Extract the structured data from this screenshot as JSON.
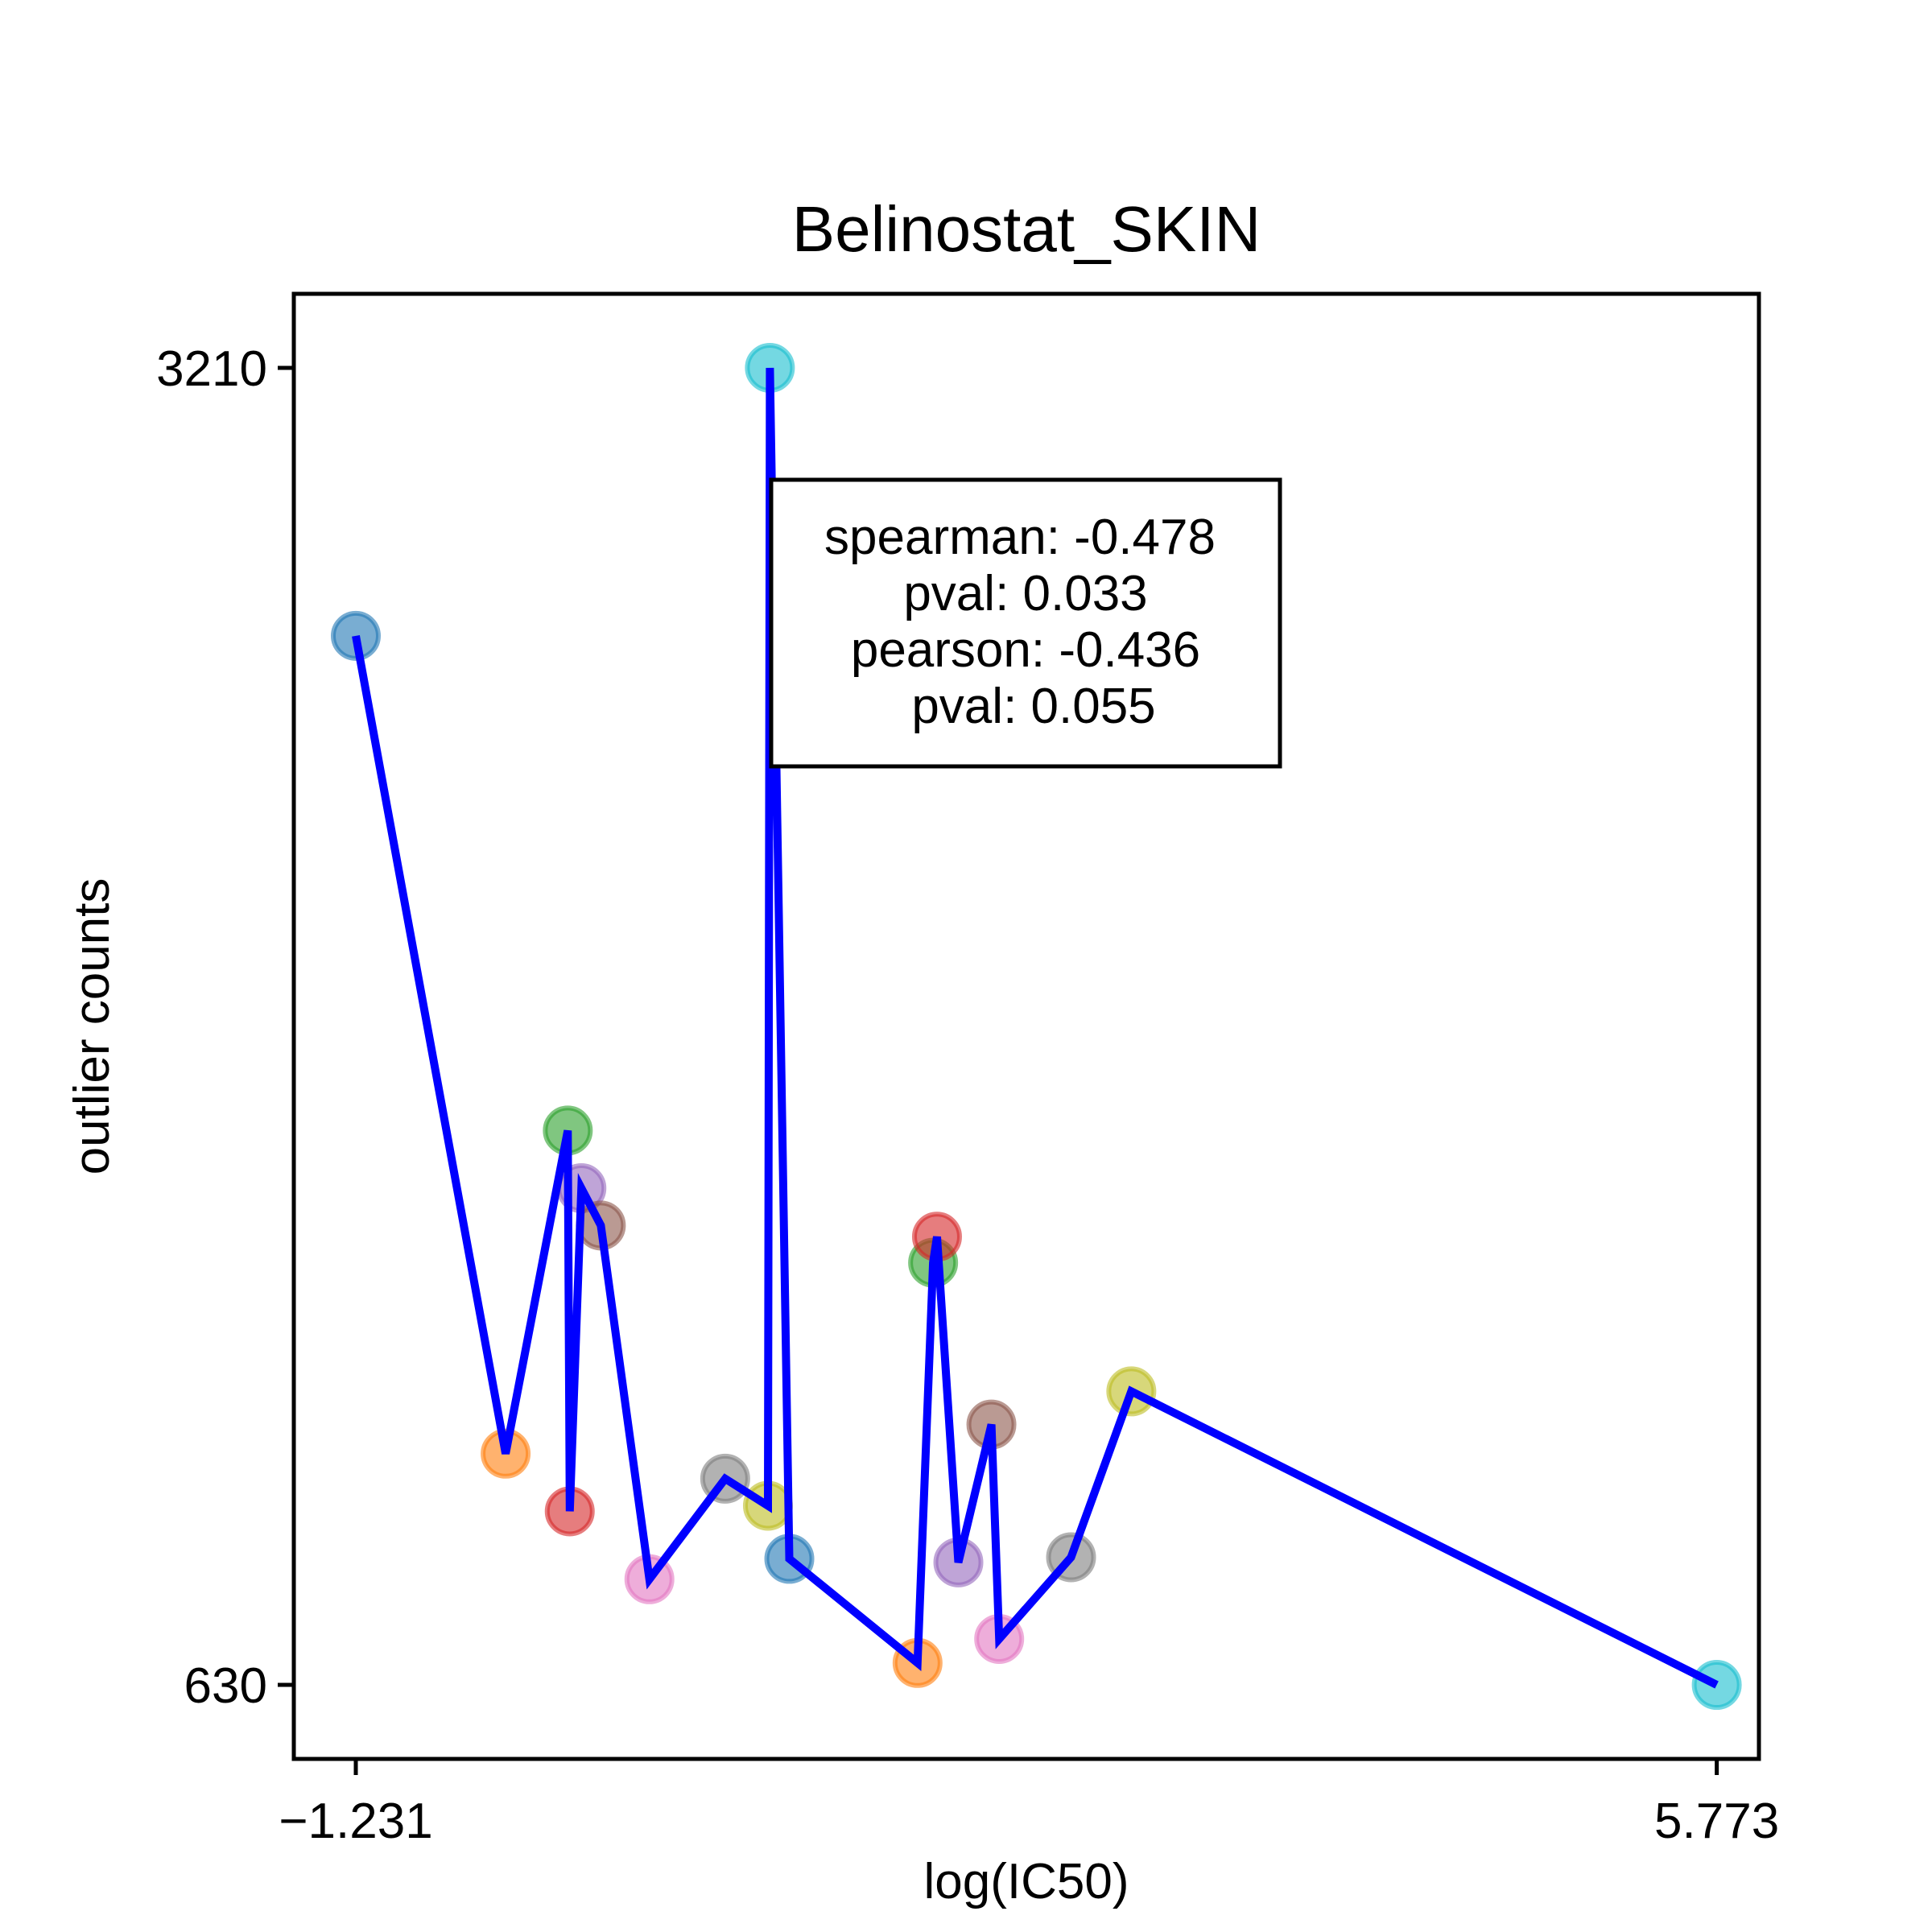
{
  "chart_data": {
    "type": "scatter",
    "title": "Belinostat_SKIN",
    "xlabel": "log(IC50)",
    "ylabel": "outlier counts",
    "xlim": [
      -1.55,
      5.99
    ],
    "ylim": [
      485,
      3355
    ],
    "x_ticks": [
      -1.231,
      5.773
    ],
    "x_tick_labels": [
      "−1.231",
      "5.773"
    ],
    "y_ticks": [
      630,
      3210
    ],
    "y_tick_labels": [
      "630",
      "3210"
    ],
    "grid": false,
    "line_color": "#0000ff",
    "points": [
      {
        "x": -1.231,
        "y": 2685,
        "color": "#1f77b4"
      },
      {
        "x": -0.46,
        "y": 1083,
        "color": "#ff7f0e"
      },
      {
        "x": -0.14,
        "y": 1716,
        "color": "#2ca02c"
      },
      {
        "x": -0.13,
        "y": 970,
        "color": "#d62728"
      },
      {
        "x": -0.07,
        "y": 1603,
        "color": "#9467bd"
      },
      {
        "x": 0.03,
        "y": 1530,
        "color": "#8c564b"
      },
      {
        "x": 0.28,
        "y": 837,
        "color": "#e377c2"
      },
      {
        "x": 0.67,
        "y": 1034,
        "color": "#7f7f7f"
      },
      {
        "x": 0.89,
        "y": 981,
        "color": "#bcbd22"
      },
      {
        "x": 0.9,
        "y": 3210,
        "color": "#17becf"
      },
      {
        "x": 1.0,
        "y": 877,
        "color": "#1f77b4"
      },
      {
        "x": 1.66,
        "y": 673,
        "color": "#ff7f0e"
      },
      {
        "x": 1.74,
        "y": 1457,
        "color": "#2ca02c"
      },
      {
        "x": 1.76,
        "y": 1508,
        "color": "#d62728"
      },
      {
        "x": 1.87,
        "y": 870,
        "color": "#9467bd"
      },
      {
        "x": 2.04,
        "y": 1140,
        "color": "#8c564b"
      },
      {
        "x": 2.08,
        "y": 720,
        "color": "#e377c2"
      },
      {
        "x": 2.45,
        "y": 880,
        "color": "#7f7f7f"
      },
      {
        "x": 2.76,
        "y": 1205,
        "color": "#bcbd22"
      },
      {
        "x": 5.773,
        "y": 630,
        "color": "#17becf"
      }
    ],
    "annotation": {
      "lines": [
        "spearman: -0.478",
        "pval: 0.033",
        "pearson: -0.436",
        "pval: 0.055"
      ],
      "placement": "upper-center"
    }
  }
}
